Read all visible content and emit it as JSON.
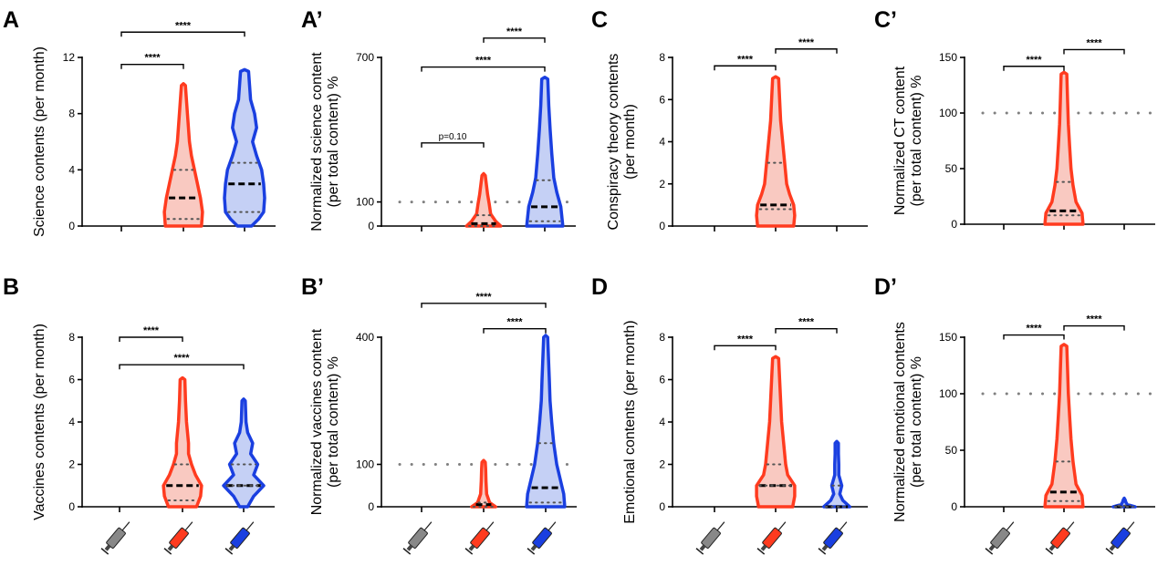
{
  "chart_data": [
    {
      "panel": "A",
      "type": "violin",
      "ylabel": "Science contents (per month)",
      "ylim": [
        0,
        12
      ],
      "yticks": [
        0,
        4,
        8,
        12
      ],
      "reference_line": null,
      "groups": [
        {
          "color": "#888888",
          "median": 0,
          "quartiles": [
            0,
            0
          ],
          "max": 0,
          "profile": []
        },
        {
          "color": "#ff3b1f",
          "median": 2,
          "quartiles": [
            0.5,
            4
          ],
          "max": 10,
          "profile": [
            [
              0,
              0.9
            ],
            [
              1,
              0.95
            ],
            [
              2,
              0.85
            ],
            [
              3,
              0.7
            ],
            [
              4,
              0.55
            ],
            [
              5,
              0.4
            ],
            [
              6,
              0.3
            ],
            [
              7,
              0.25
            ],
            [
              8,
              0.2
            ],
            [
              9,
              0.15
            ],
            [
              10,
              0.1
            ]
          ]
        },
        {
          "color": "#1a3fe0",
          "median": 3,
          "quartiles": [
            1,
            4.5
          ],
          "max": 11,
          "profile": [
            [
              0,
              0.35
            ],
            [
              0.5,
              0.7
            ],
            [
              1,
              0.95
            ],
            [
              2,
              1.0
            ],
            [
              3,
              0.95
            ],
            [
              4,
              0.85
            ],
            [
              5,
              0.6
            ],
            [
              6,
              0.4
            ],
            [
              7,
              0.6
            ],
            [
              8,
              0.5
            ],
            [
              9,
              0.3
            ],
            [
              10,
              0.25
            ],
            [
              11,
              0.2
            ]
          ]
        }
      ],
      "comparisons": [
        {
          "from": 0,
          "to": 1,
          "label": "****",
          "y": 11.5
        },
        {
          "from": 0,
          "to": 2,
          "label": "****",
          "y": 13.8
        }
      ]
    },
    {
      "panel": "A’",
      "type": "violin",
      "ylabel": "Normalized science content (per total content) %",
      "ylim": [
        0,
        700
      ],
      "yticks": [
        0,
        100,
        700
      ],
      "reference_line": 100,
      "groups": [
        {
          "color": "#888888",
          "median": 0,
          "quartiles": [
            0,
            0
          ],
          "max": 0,
          "profile": []
        },
        {
          "color": "#ff3b1f",
          "median": 10,
          "quartiles": [
            0,
            45
          ],
          "max": 210,
          "profile": [
            [
              0,
              0.85
            ],
            [
              20,
              0.6
            ],
            [
              50,
              0.35
            ],
            [
              90,
              0.28
            ],
            [
              130,
              0.2
            ],
            [
              170,
              0.14
            ],
            [
              210,
              0.08
            ]
          ]
        },
        {
          "color": "#1a3fe0",
          "median": 80,
          "quartiles": [
            20,
            190
          ],
          "max": 610,
          "profile": [
            [
              0,
              0.9
            ],
            [
              40,
              0.85
            ],
            [
              80,
              0.8
            ],
            [
              140,
              0.6
            ],
            [
              200,
              0.45
            ],
            [
              300,
              0.35
            ],
            [
              400,
              0.27
            ],
            [
              500,
              0.2
            ],
            [
              610,
              0.15
            ]
          ]
        }
      ],
      "comparisons": [
        {
          "from": 0,
          "to": 1,
          "label": "p=0.10",
          "y": 345
        },
        {
          "from": 0,
          "to": 2,
          "label": "****",
          "y": 660
        },
        {
          "from": 1,
          "to": 2,
          "label": "****",
          "y": 780
        }
      ]
    },
    {
      "panel": "C",
      "type": "violin",
      "ylabel": "Conspiracy theory contents (per month)",
      "ylim": [
        0,
        8
      ],
      "yticks": [
        0,
        2,
        4,
        6,
        8
      ],
      "reference_line": null,
      "groups": [
        {
          "color": "#888888",
          "median": 0,
          "quartiles": [
            0,
            0
          ],
          "max": 0,
          "profile": []
        },
        {
          "color": "#ff3b1f",
          "median": 1,
          "quartiles": [
            0.8,
            3
          ],
          "max": 7,
          "profile": [
            [
              0,
              0.9
            ],
            [
              0.5,
              0.95
            ],
            [
              1,
              0.9
            ],
            [
              1.5,
              0.7
            ],
            [
              2,
              0.55
            ],
            [
              3,
              0.45
            ],
            [
              4,
              0.35
            ],
            [
              5,
              0.25
            ],
            [
              6,
              0.2
            ],
            [
              7,
              0.15
            ]
          ]
        },
        {
          "color": "#1a3fe0",
          "median": 0,
          "quartiles": [
            0,
            0
          ],
          "max": 0,
          "profile": []
        }
      ],
      "comparisons": [
        {
          "from": 0,
          "to": 1,
          "label": "****",
          "y": 7.6
        },
        {
          "from": 1,
          "to": 2,
          "label": "****",
          "y": 8.4
        }
      ]
    },
    {
      "panel": "C’",
      "type": "violin",
      "ylabel": "Normalized CT content (per total content) %",
      "ylim": [
        0,
        150
      ],
      "yticks": [
        0,
        50,
        100,
        150
      ],
      "reference_line": 100,
      "groups": [
        {
          "color": "#888888",
          "median": 0,
          "quartiles": [
            0,
            0
          ],
          "max": 0,
          "profile": []
        },
        {
          "color": "#ff3b1f",
          "median": 12,
          "quartiles": [
            8,
            38
          ],
          "max": 135,
          "profile": [
            [
              0,
              0.95
            ],
            [
              10,
              0.9
            ],
            [
              20,
              0.6
            ],
            [
              35,
              0.45
            ],
            [
              50,
              0.35
            ],
            [
              70,
              0.28
            ],
            [
              90,
              0.22
            ],
            [
              110,
              0.18
            ],
            [
              135,
              0.14
            ]
          ]
        },
        {
          "color": "#1a3fe0",
          "median": 0,
          "quartiles": [
            0,
            0
          ],
          "max": 0,
          "profile": []
        }
      ],
      "comparisons": [
        {
          "from": 0,
          "to": 1,
          "label": "****",
          "y": 142
        },
        {
          "from": 1,
          "to": 2,
          "label": "****",
          "y": 157
        }
      ]
    },
    {
      "panel": "B",
      "type": "violin",
      "ylabel": "Vaccines contents (per month)",
      "ylim": [
        0,
        8
      ],
      "yticks": [
        0,
        2,
        4,
        6,
        8
      ],
      "reference_line": null,
      "groups": [
        {
          "color": "#888888",
          "median": 0,
          "quartiles": [
            0,
            0
          ],
          "max": 0,
          "profile": []
        },
        {
          "color": "#ff3b1f",
          "median": 1,
          "quartiles": [
            0.3,
            2
          ],
          "max": 6,
          "profile": [
            [
              0,
              0.7
            ],
            [
              0.5,
              0.9
            ],
            [
              1,
              0.95
            ],
            [
              1.5,
              0.65
            ],
            [
              2,
              0.45
            ],
            [
              2.5,
              0.3
            ],
            [
              3,
              0.3
            ],
            [
              3.5,
              0.25
            ],
            [
              4,
              0.2
            ],
            [
              5,
              0.15
            ],
            [
              6,
              0.12
            ]
          ]
        },
        {
          "color": "#1a3fe0",
          "median": 1,
          "quartiles": [
            1,
            2
          ],
          "max": 5,
          "profile": [
            [
              0,
              0.2
            ],
            [
              0.5,
              0.5
            ],
            [
              1,
              1.0
            ],
            [
              1.5,
              0.5
            ],
            [
              2,
              0.7
            ],
            [
              2.5,
              0.35
            ],
            [
              3,
              0.45
            ],
            [
              3.5,
              0.2
            ],
            [
              4,
              0.12
            ],
            [
              5,
              0.08
            ]
          ]
        }
      ],
      "comparisons": [
        {
          "from": 0,
          "to": 1,
          "label": "****",
          "y": 8.0
        },
        {
          "from": 0,
          "to": 2,
          "label": "****",
          "y": 6.7
        }
      ]
    },
    {
      "panel": "B’",
      "type": "violin",
      "ylabel": "Normalized vaccines content (per total content) %",
      "ylim": [
        0,
        400
      ],
      "yticks": [
        0,
        100,
        400
      ],
      "reference_line": 100,
      "groups": [
        {
          "color": "#888888",
          "median": 0,
          "quartiles": [
            0,
            0
          ],
          "max": 0,
          "profile": []
        },
        {
          "color": "#ff3b1f",
          "median": 5,
          "quartiles": [
            0,
            10
          ],
          "max": 105,
          "profile": [
            [
              0,
              0.6
            ],
            [
              10,
              0.3
            ],
            [
              30,
              0.15
            ],
            [
              60,
              0.12
            ],
            [
              90,
              0.1
            ],
            [
              105,
              0.08
            ]
          ]
        },
        {
          "color": "#1a3fe0",
          "median": 45,
          "quartiles": [
            10,
            150
          ],
          "max": 400,
          "profile": [
            [
              0,
              0.95
            ],
            [
              30,
              0.9
            ],
            [
              60,
              0.75
            ],
            [
              100,
              0.55
            ],
            [
              150,
              0.4
            ],
            [
              200,
              0.3
            ],
            [
              250,
              0.22
            ],
            [
              300,
              0.18
            ],
            [
              350,
              0.14
            ],
            [
              400,
              0.1
            ]
          ]
        }
      ],
      "comparisons": [
        {
          "from": 0,
          "to": 2,
          "label": "****",
          "y": 480
        },
        {
          "from": 1,
          "to": 2,
          "label": "****",
          "y": 420
        }
      ]
    },
    {
      "panel": "D",
      "type": "violin",
      "ylabel": "Emotional contents (per month)",
      "ylim": [
        0,
        8
      ],
      "yticks": [
        0,
        2,
        4,
        6,
        8
      ],
      "reference_line": null,
      "groups": [
        {
          "color": "#888888",
          "median": 0,
          "quartiles": [
            0,
            0
          ],
          "max": 0,
          "profile": []
        },
        {
          "color": "#ff3b1f",
          "median": 1,
          "quartiles": [
            1,
            2
          ],
          "max": 7,
          "profile": [
            [
              0,
              0.85
            ],
            [
              0.5,
              0.95
            ],
            [
              1,
              0.95
            ],
            [
              1.5,
              0.6
            ],
            [
              2,
              0.5
            ],
            [
              3,
              0.4
            ],
            [
              4,
              0.3
            ],
            [
              5,
              0.25
            ],
            [
              6,
              0.2
            ],
            [
              7,
              0.15
            ]
          ]
        },
        {
          "color": "#1a3fe0",
          "median": 0,
          "quartiles": [
            0,
            1
          ],
          "max": 3,
          "profile": [
            [
              0,
              0.65
            ],
            [
              0.3,
              0.3
            ],
            [
              0.6,
              0.15
            ],
            [
              1,
              0.25
            ],
            [
              1.5,
              0.1
            ],
            [
              2,
              0.1
            ],
            [
              2.5,
              0.08
            ],
            [
              3,
              0.08
            ]
          ]
        }
      ],
      "comparisons": [
        {
          "from": 0,
          "to": 1,
          "label": "****",
          "y": 7.6
        },
        {
          "from": 1,
          "to": 2,
          "label": "****",
          "y": 8.4
        }
      ]
    },
    {
      "panel": "D’",
      "type": "violin",
      "ylabel": "Normalized emotional contents (per total content) %",
      "ylim": [
        0,
        150
      ],
      "yticks": [
        0,
        50,
        100,
        150
      ],
      "reference_line": 100,
      "groups": [
        {
          "color": "#888888",
          "median": 0,
          "quartiles": [
            0,
            0
          ],
          "max": 0,
          "profile": []
        },
        {
          "color": "#ff3b1f",
          "median": 13,
          "quartiles": [
            5,
            40
          ],
          "max": 142,
          "profile": [
            [
              0,
              0.95
            ],
            [
              10,
              0.9
            ],
            [
              20,
              0.6
            ],
            [
              40,
              0.45
            ],
            [
              60,
              0.35
            ],
            [
              80,
              0.28
            ],
            [
              100,
              0.22
            ],
            [
              120,
              0.18
            ],
            [
              142,
              0.14
            ]
          ]
        },
        {
          "color": "#1a3fe0",
          "median": 0,
          "quartiles": [
            0,
            1
          ],
          "max": 6,
          "profile": [
            [
              0,
              0.55
            ],
            [
              2,
              0.15
            ],
            [
              4,
              0.08
            ],
            [
              6,
              0.05
            ]
          ]
        }
      ],
      "comparisons": [
        {
          "from": 0,
          "to": 1,
          "label": "****",
          "y": 152
        },
        {
          "from": 1,
          "to": 2,
          "label": "****",
          "y": 160
        }
      ]
    }
  ],
  "icons": [
    "syringe-gray-icon",
    "syringe-red-icon",
    "syringe-blue-icon"
  ],
  "colors": {
    "gray": "#888888",
    "red": "#ff3b1f",
    "red_fill": "#f9c9c1",
    "blue": "#1a3fe0",
    "blue_fill": "#c5d0f5"
  }
}
